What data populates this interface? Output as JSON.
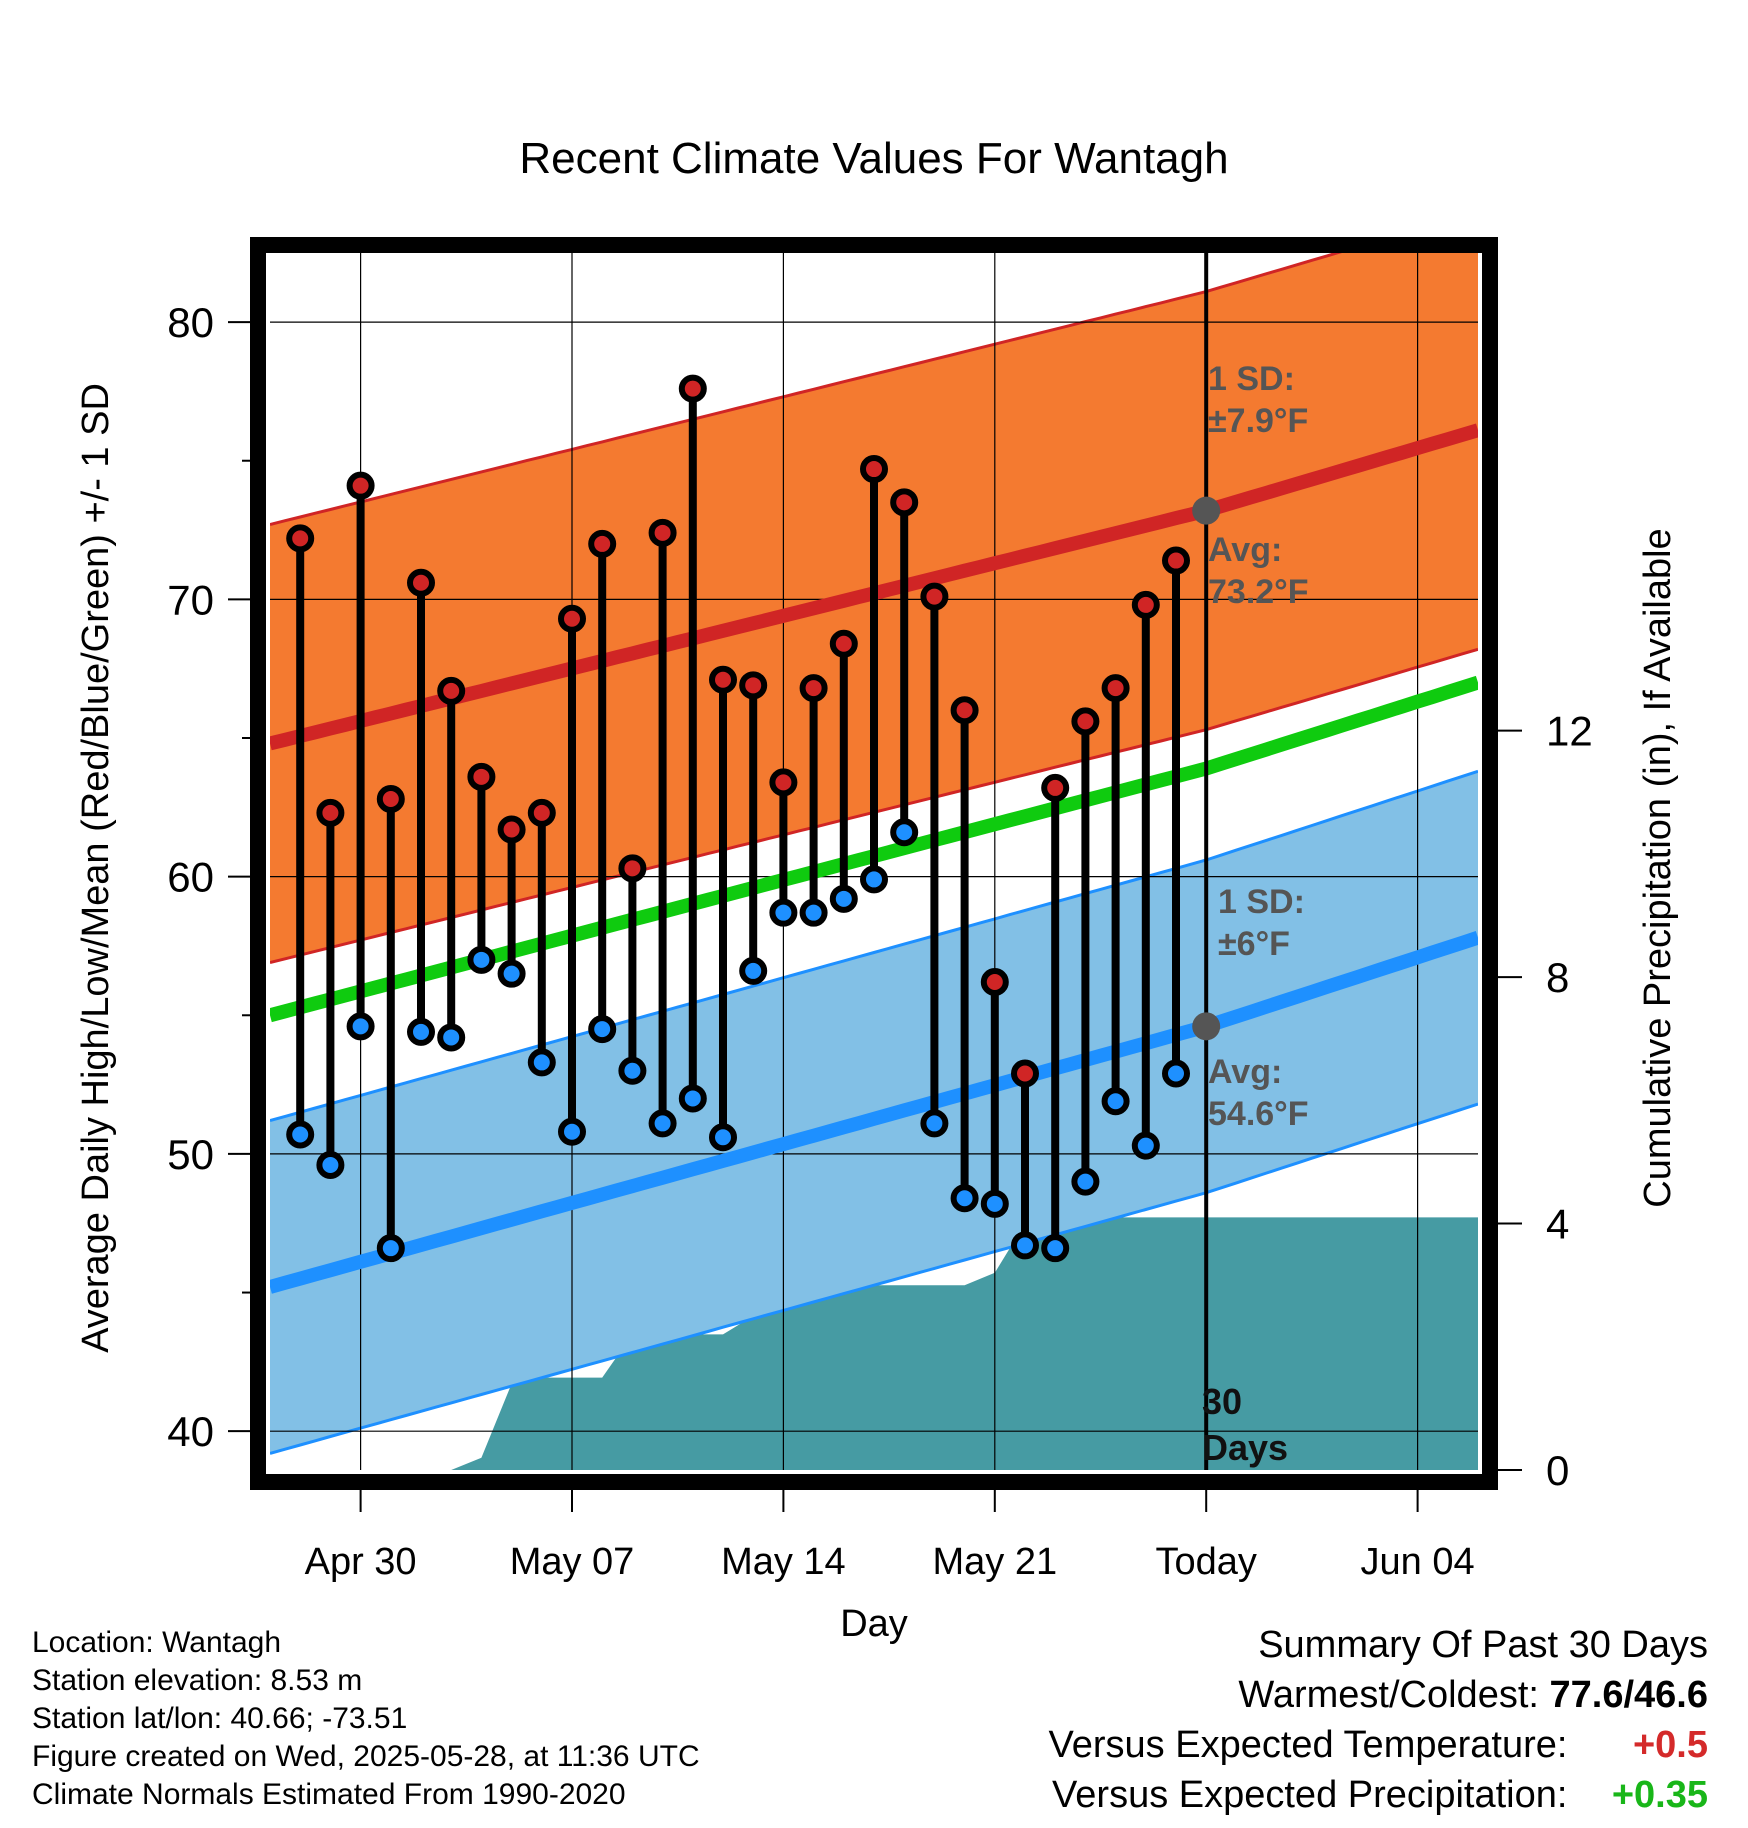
{
  "chart_data": {
    "type": "line",
    "title": "Recent Climate Values For Wantagh",
    "xlabel": "Day",
    "ylabel": "Average Daily High/Low/Mean (Red/Blue/Green) +/- 1 SD",
    "y2label": "Cumulative Precipitation (in), If Available",
    "x_start": "2025-04-27",
    "x_end": "2025-06-06",
    "x_ticks": [
      {
        "date": "2025-04-30",
        "label": "Apr 30"
      },
      {
        "date": "2025-05-07",
        "label": "May 07"
      },
      {
        "date": "2025-05-14",
        "label": "May 14"
      },
      {
        "date": "2025-05-21",
        "label": "May 21"
      },
      {
        "date": "2025-05-28",
        "label": "Today"
      },
      {
        "date": "2025-06-04",
        "label": "Jun 04"
      }
    ],
    "ylim": [
      38.6,
      82.6
    ],
    "y_ticks": [
      40,
      50,
      60,
      70,
      80
    ],
    "y2lim": [
      0,
      19.8
    ],
    "y2_ticks": [
      0,
      4,
      8,
      12
    ],
    "grid": true,
    "today": "2025-05-28",
    "today_label": [
      "30",
      "Days"
    ],
    "normals": {
      "x": [
        "2025-04-27",
        "2025-05-28",
        "2025-06-06"
      ],
      "high_avg": [
        64.8,
        73.2,
        76.1
      ],
      "high_sd": 7.9,
      "low_avg": [
        45.2,
        54.6,
        57.8
      ],
      "low_sd": 6.0,
      "mean_avg": [
        55.0,
        63.9,
        67.0
      ]
    },
    "annotations": {
      "high_sd_label": [
        "1 SD:",
        "±7.9°F"
      ],
      "high_avg_label": [
        "Avg:",
        "73.2°F"
      ],
      "low_sd_label": [
        "1 SD:",
        "±6°F"
      ],
      "low_avg_label": [
        "Avg:",
        "54.6°F"
      ]
    },
    "series": [
      {
        "name": "High",
        "x": [
          "2025-04-28",
          "2025-04-29",
          "2025-04-30",
          "2025-05-01",
          "2025-05-02",
          "2025-05-03",
          "2025-05-04",
          "2025-05-05",
          "2025-05-06",
          "2025-05-07",
          "2025-05-08",
          "2025-05-09",
          "2025-05-10",
          "2025-05-11",
          "2025-05-12",
          "2025-05-13",
          "2025-05-14",
          "2025-05-15",
          "2025-05-16",
          "2025-05-17",
          "2025-05-18",
          "2025-05-19",
          "2025-05-20",
          "2025-05-21",
          "2025-05-22",
          "2025-05-23",
          "2025-05-24",
          "2025-05-25",
          "2025-05-26",
          "2025-05-27"
        ],
        "values": [
          72.2,
          62.3,
          74.1,
          62.8,
          70.6,
          66.7,
          63.6,
          61.7,
          62.3,
          69.3,
          72.0,
          60.3,
          72.4,
          77.6,
          67.1,
          66.9,
          63.4,
          66.8,
          68.4,
          74.7,
          73.5,
          70.1,
          66.0,
          56.2,
          52.9,
          63.2,
          65.6,
          66.8,
          69.8,
          71.4
        ]
      },
      {
        "name": "Low",
        "x": [
          "2025-04-28",
          "2025-04-29",
          "2025-04-30",
          "2025-05-01",
          "2025-05-02",
          "2025-05-03",
          "2025-05-04",
          "2025-05-05",
          "2025-05-06",
          "2025-05-07",
          "2025-05-08",
          "2025-05-09",
          "2025-05-10",
          "2025-05-11",
          "2025-05-12",
          "2025-05-13",
          "2025-05-14",
          "2025-05-15",
          "2025-05-16",
          "2025-05-17",
          "2025-05-18",
          "2025-05-19",
          "2025-05-20",
          "2025-05-21",
          "2025-05-22",
          "2025-05-23",
          "2025-05-24",
          "2025-05-25",
          "2025-05-26",
          "2025-05-27"
        ],
        "values": [
          50.7,
          49.6,
          54.6,
          46.6,
          54.4,
          54.2,
          57.0,
          56.5,
          53.3,
          50.8,
          54.5,
          53.0,
          51.1,
          52.0,
          50.6,
          56.6,
          58.7,
          58.7,
          59.2,
          59.9,
          61.6,
          51.1,
          48.4,
          48.2,
          46.7,
          46.6,
          49.0,
          51.9,
          50.3,
          52.9
        ]
      },
      {
        "name": "Cumulative Precipitation",
        "x": [
          "2025-04-27",
          "2025-05-03",
          "2025-05-04",
          "2025-05-05",
          "2025-05-06",
          "2025-05-08",
          "2025-05-09",
          "2025-05-12",
          "2025-05-13",
          "2025-05-14",
          "2025-05-20",
          "2025-05-21",
          "2025-05-22",
          "2025-05-23",
          "2025-06-06"
        ],
        "values": [
          0.0,
          0.0,
          0.2,
          1.4,
          1.5,
          1.5,
          2.2,
          2.2,
          2.5,
          3.0,
          3.0,
          3.2,
          4.0,
          4.1,
          4.1
        ]
      }
    ]
  },
  "footer": {
    "location": "Location: Wantagh",
    "elevation": "Station elevation: 8.53 m",
    "latlon": "Station lat/lon: 40.66; -73.51",
    "created": "Figure created on Wed, 2025-05-28, at 11:36 UTC",
    "normals_note": "Climate Normals Estimated From 1990-2020"
  },
  "summary": {
    "heading": "Summary Of Past 30 Days",
    "warmest_coldest_label": "Warmest/Coldest:",
    "warmest_coldest_value": "77.6/46.6",
    "temp_label": "Versus Expected Temperature:",
    "temp_value": "+0.5",
    "precip_label": "Versus Expected Precipitation:",
    "precip_value": "+0.35",
    "colors": {
      "temp": "#d42a2a",
      "precip": "#19b619"
    }
  },
  "colors": {
    "high_band": "#f47a30",
    "high_line": "#d02525",
    "low_band": "#82c0e6",
    "low_line": "#1e90ff",
    "mean_line": "#0fcb0f",
    "precip": "#469ba3",
    "annotation": "#555555"
  }
}
